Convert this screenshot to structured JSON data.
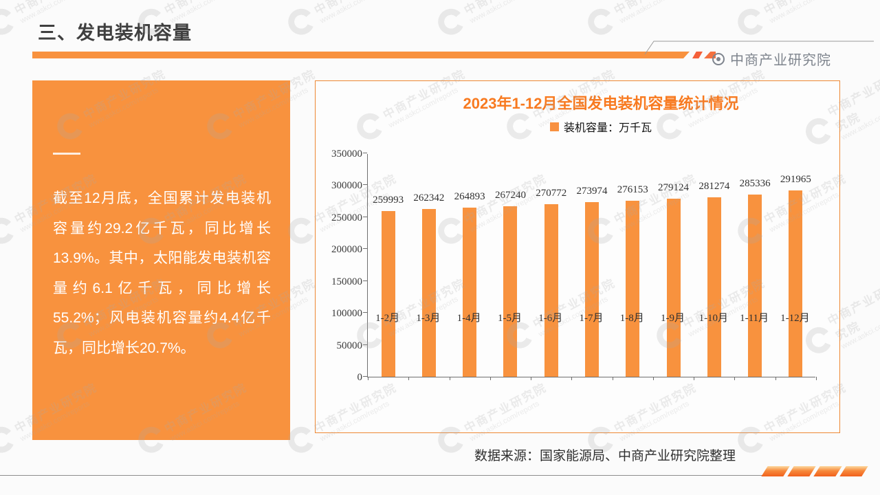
{
  "header": {
    "title": "三、发电装机容量",
    "brand": "中商产业研究院"
  },
  "info_box": {
    "text": "截至12月底，全国累计发电装机容量约29.2亿千瓦，同比增长13.9%。其中，太阳能发电装机容量约6.1亿千瓦，同比增长55.2%；风电装机容量约4.4亿千瓦，同比增长20.7%。"
  },
  "chart_data": {
    "type": "bar",
    "title": "2023年1-12月全国发电装机容量统计情况",
    "legend": "装机容量：万千瓦",
    "legend_position": "top",
    "categories": [
      "1-2月",
      "1-3月",
      "1-4月",
      "1-5月",
      "1-6月",
      "1-7月",
      "1-8月",
      "1-9月",
      "1-10月",
      "1-11月",
      "1-12月"
    ],
    "values": [
      259993,
      262342,
      264893,
      267240,
      270772,
      273974,
      276153,
      279124,
      281274,
      285336,
      291965
    ],
    "ylim": [
      0,
      350000
    ],
    "yticks": [
      0,
      50000,
      100000,
      150000,
      200000,
      250000,
      300000,
      350000
    ],
    "grid": false,
    "xlabel": "",
    "ylabel": "",
    "bar_color": "#F8923E"
  },
  "source_note": "数据来源：国家能源局、中商产业研究院整理",
  "watermark": {
    "line1": "中商产业研究院",
    "line2": "www.askci.com/reports"
  },
  "colors": {
    "primary_orange": "#F8923E",
    "accent_red_orange": "#F4603A",
    "title_text": "#3F3F3F",
    "chart_title": "#F87A20",
    "brand_gray": "#7E848D",
    "panel_border": "#ED8733"
  }
}
